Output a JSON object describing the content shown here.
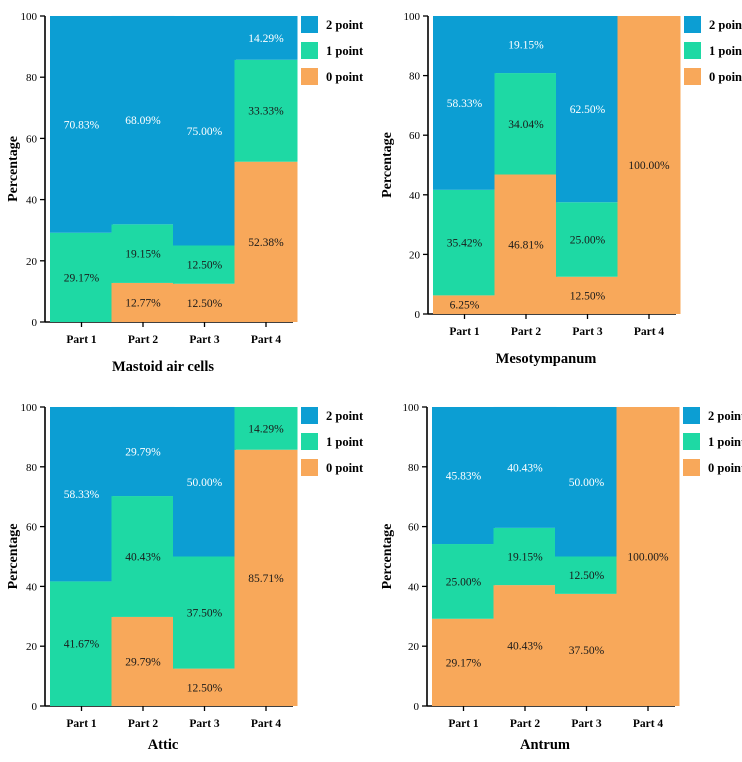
{
  "chart_data": [
    {
      "type": "bar",
      "stacked": true,
      "title": "Mastoid air cells",
      "ylabel": "Percentage",
      "xlabel": "",
      "ylim": [
        0,
        100
      ],
      "yticks": [
        "0",
        "20",
        "40",
        "60",
        "80",
        "100"
      ],
      "categories": [
        "Part 1",
        "Part 2",
        "Part 3",
        "Part 4"
      ],
      "legend_position": "top-right",
      "series": [
        {
          "name": "0 point",
          "color": "#F8A85A",
          "values": [
            0,
            12.77,
            12.5,
            52.38
          ],
          "labels": [
            "",
            "12.77%",
            "12.50%",
            "52.38%"
          ]
        },
        {
          "name": "1 point",
          "color": "#1ED9A4",
          "values": [
            29.17,
            19.15,
            12.5,
            33.33
          ],
          "labels": [
            "29.17%",
            "19.15%",
            "12.50%",
            "33.33%"
          ]
        },
        {
          "name": "2 point",
          "color": "#0C9ED3",
          "values": [
            70.83,
            68.09,
            75.0,
            14.29
          ],
          "labels": [
            "70.83%",
            "68.09%",
            "75.00%",
            "14.29%"
          ]
        }
      ]
    },
    {
      "type": "bar",
      "stacked": true,
      "title": "Mesotympanum",
      "ylabel": "Percentage",
      "xlabel": "",
      "ylim": [
        0,
        100
      ],
      "yticks": [
        "0",
        "20",
        "40",
        "60",
        "80",
        "100"
      ],
      "categories": [
        "Part 1",
        "Part 2",
        "Part 3",
        "Part 4"
      ],
      "legend_position": "top-right",
      "series": [
        {
          "name": "0 point",
          "color": "#F8A85A",
          "values": [
            6.25,
            46.81,
            12.5,
            100.0
          ],
          "labels": [
            "6.25%",
            "46.81%",
            "12.50%",
            "100.00%"
          ]
        },
        {
          "name": "1 point",
          "color": "#1ED9A4",
          "values": [
            35.42,
            34.04,
            25.0,
            0
          ],
          "labels": [
            "35.42%",
            "34.04%",
            "25.00%",
            ""
          ]
        },
        {
          "name": "2 point",
          "color": "#0C9ED3",
          "values": [
            58.33,
            19.15,
            62.5,
            0
          ],
          "labels": [
            "58.33%",
            "19.15%",
            "62.50%",
            ""
          ]
        }
      ]
    },
    {
      "type": "bar",
      "stacked": true,
      "title": "Attic",
      "ylabel": "Percentage",
      "xlabel": "",
      "ylim": [
        0,
        100
      ],
      "yticks": [
        "0",
        "20",
        "40",
        "60",
        "80",
        "100"
      ],
      "categories": [
        "Part 1",
        "Part 2",
        "Part 3",
        "Part 4"
      ],
      "legend_position": "top-right",
      "series": [
        {
          "name": "0 point",
          "color": "#F8A85A",
          "values": [
            0,
            29.79,
            12.5,
            85.71
          ],
          "labels": [
            "",
            "29.79%",
            "12.50%",
            "85.71%"
          ]
        },
        {
          "name": "1 point",
          "color": "#1ED9A4",
          "values": [
            41.67,
            40.43,
            37.5,
            14.29
          ],
          "labels": [
            "41.67%",
            "40.43%",
            "37.50%",
            "14.29%"
          ]
        },
        {
          "name": "2 point",
          "color": "#0C9ED3",
          "values": [
            58.33,
            29.79,
            50.0,
            0
          ],
          "labels": [
            "58.33%",
            "29.79%",
            "50.00%",
            ""
          ]
        }
      ]
    },
    {
      "type": "bar",
      "stacked": true,
      "title": "Antrum",
      "ylabel": "Percentage",
      "xlabel": "",
      "ylim": [
        0,
        100
      ],
      "yticks": [
        "0",
        "20",
        "40",
        "60",
        "80",
        "100"
      ],
      "categories": [
        "Part 1",
        "Part 2",
        "Part 3",
        "Part 4"
      ],
      "legend_position": "top-right",
      "series": [
        {
          "name": "0 point",
          "color": "#F8A85A",
          "values": [
            29.17,
            40.43,
            37.5,
            100.0
          ],
          "labels": [
            "29.17%",
            "40.43%",
            "37.50%",
            "100.00%"
          ]
        },
        {
          "name": "1 point",
          "color": "#1ED9A4",
          "values": [
            25.0,
            19.15,
            12.5,
            0
          ],
          "labels": [
            "25.00%",
            "19.15%",
            "12.50%",
            ""
          ]
        },
        {
          "name": "2 point",
          "color": "#0C9ED3",
          "values": [
            45.83,
            40.43,
            50.0,
            0
          ],
          "labels": [
            "45.83%",
            "40.43%",
            "50.00%",
            ""
          ]
        }
      ]
    }
  ],
  "legend_order": [
    "2 point",
    "1 point",
    "0 point"
  ],
  "label_colors": {
    "on_blue": "#ffffff",
    "on_other": "#1a1a1a"
  }
}
